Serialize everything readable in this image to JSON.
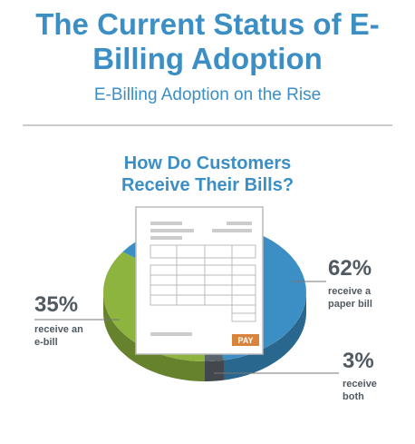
{
  "header": {
    "title": "The Current Status of E-Billing Adoption",
    "subtitle": "E-Billing Adoption on the Rise"
  },
  "chart_data": {
    "type": "pie",
    "title": "How Do Customers Receive Their Bills?",
    "categories": [
      "receive a paper bill",
      "receive both",
      "receive an e-bill"
    ],
    "values": [
      62,
      3,
      35
    ],
    "value_labels": [
      "62%",
      "3%",
      "35%"
    ],
    "colors": [
      "#3b8fc5",
      "#5b646c",
      "#8db43f"
    ]
  },
  "bill": {
    "button": "PAY"
  }
}
